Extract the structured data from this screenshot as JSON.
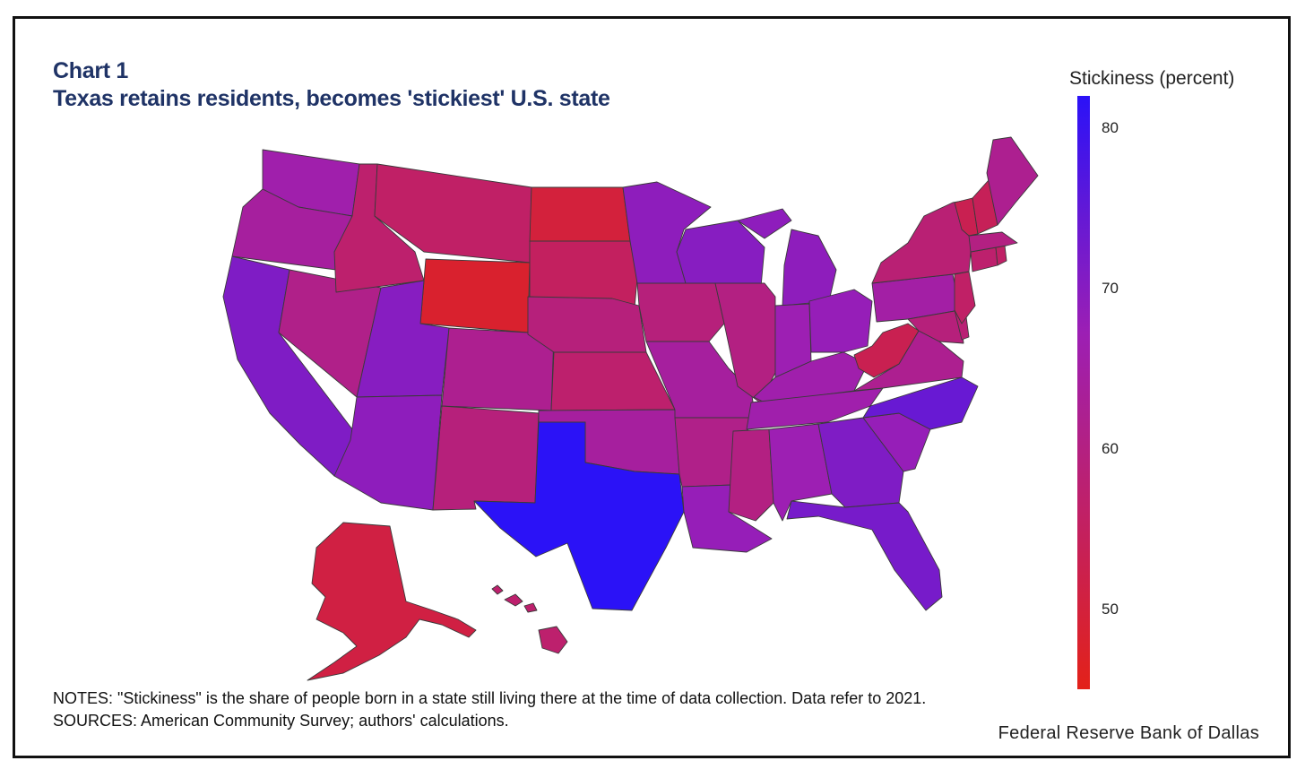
{
  "header": {
    "chart_label": "Chart 1",
    "title": "Texas retains residents, becomes 'stickiest' U.S. state"
  },
  "legend": {
    "title": "Stickiness (percent)",
    "ticks": [
      80,
      70,
      60,
      50
    ],
    "min": 45,
    "max": 82,
    "color_low": "#e32119",
    "color_mid": "#9c1fb4",
    "color_high": "#2b12f7"
  },
  "footer": {
    "notes": "NOTES: \"Stickiness\" is the share of people born in a state still living there at the time of data collection. Data refer to 2021.",
    "sources": "SOURCES: American Community Survey; authors' calculations.",
    "publisher": "Federal Reserve Bank of Dallas"
  },
  "chart_data": {
    "type": "choropleth",
    "region": "United States",
    "value_label": "Stickiness (percent)",
    "color_scale": {
      "min": 45,
      "max": 82,
      "low": "#e32119",
      "high": "#2b12f7"
    },
    "states": [
      {
        "code": "WA",
        "value": 66
      },
      {
        "code": "OR",
        "value": 64
      },
      {
        "code": "CA",
        "value": 71
      },
      {
        "code": "NV",
        "value": 61
      },
      {
        "code": "ID",
        "value": 57
      },
      {
        "code": "MT",
        "value": 56
      },
      {
        "code": "WY",
        "value": 48
      },
      {
        "code": "UT",
        "value": 70
      },
      {
        "code": "AZ",
        "value": 69
      },
      {
        "code": "CO",
        "value": 62
      },
      {
        "code": "NM",
        "value": 59
      },
      {
        "code": "ND",
        "value": 50
      },
      {
        "code": "SD",
        "value": 55
      },
      {
        "code": "NE",
        "value": 59
      },
      {
        "code": "KS",
        "value": 57
      },
      {
        "code": "OK",
        "value": 64
      },
      {
        "code": "TX",
        "value": 82
      },
      {
        "code": "MN",
        "value": 69
      },
      {
        "code": "IA",
        "value": 59
      },
      {
        "code": "MO",
        "value": 64
      },
      {
        "code": "AR",
        "value": 61
      },
      {
        "code": "LA",
        "value": 68
      },
      {
        "code": "WI",
        "value": 70
      },
      {
        "code": "IL",
        "value": 60
      },
      {
        "code": "MI",
        "value": 69
      },
      {
        "code": "IN",
        "value": 67
      },
      {
        "code": "OH",
        "value": 68
      },
      {
        "code": "KY",
        "value": 66
      },
      {
        "code": "TN",
        "value": 66
      },
      {
        "code": "MS",
        "value": 60
      },
      {
        "code": "AL",
        "value": 67
      },
      {
        "code": "GA",
        "value": 71
      },
      {
        "code": "FL",
        "value": 72
      },
      {
        "code": "SC",
        "value": 68
      },
      {
        "code": "NC",
        "value": 74
      },
      {
        "code": "VA",
        "value": 62
      },
      {
        "code": "WV",
        "value": 53
      },
      {
        "code": "PA",
        "value": 65
      },
      {
        "code": "NY",
        "value": 58
      },
      {
        "code": "VT",
        "value": 53
      },
      {
        "code": "NH",
        "value": 54
      },
      {
        "code": "ME",
        "value": 62
      },
      {
        "code": "MA",
        "value": 60
      },
      {
        "code": "CT",
        "value": 57
      },
      {
        "code": "RI",
        "value": 56
      },
      {
        "code": "NJ",
        "value": 56
      },
      {
        "code": "DE",
        "value": 58
      },
      {
        "code": "MD",
        "value": 59
      },
      {
        "code": "AK",
        "value": 51
      },
      {
        "code": "HI",
        "value": 57
      }
    ]
  }
}
